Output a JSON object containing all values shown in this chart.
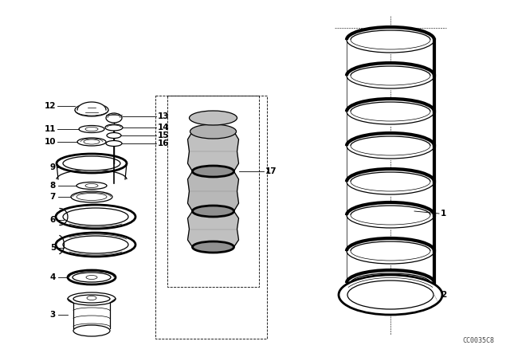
{
  "background_color": "#ffffff",
  "diagram_code": "CC0035C8",
  "figure_width": 6.4,
  "figure_height": 4.48,
  "dpi": 100,
  "line_color": "#000000",
  "font_size_labels": 7.5,
  "font_size_code": 6.0
}
